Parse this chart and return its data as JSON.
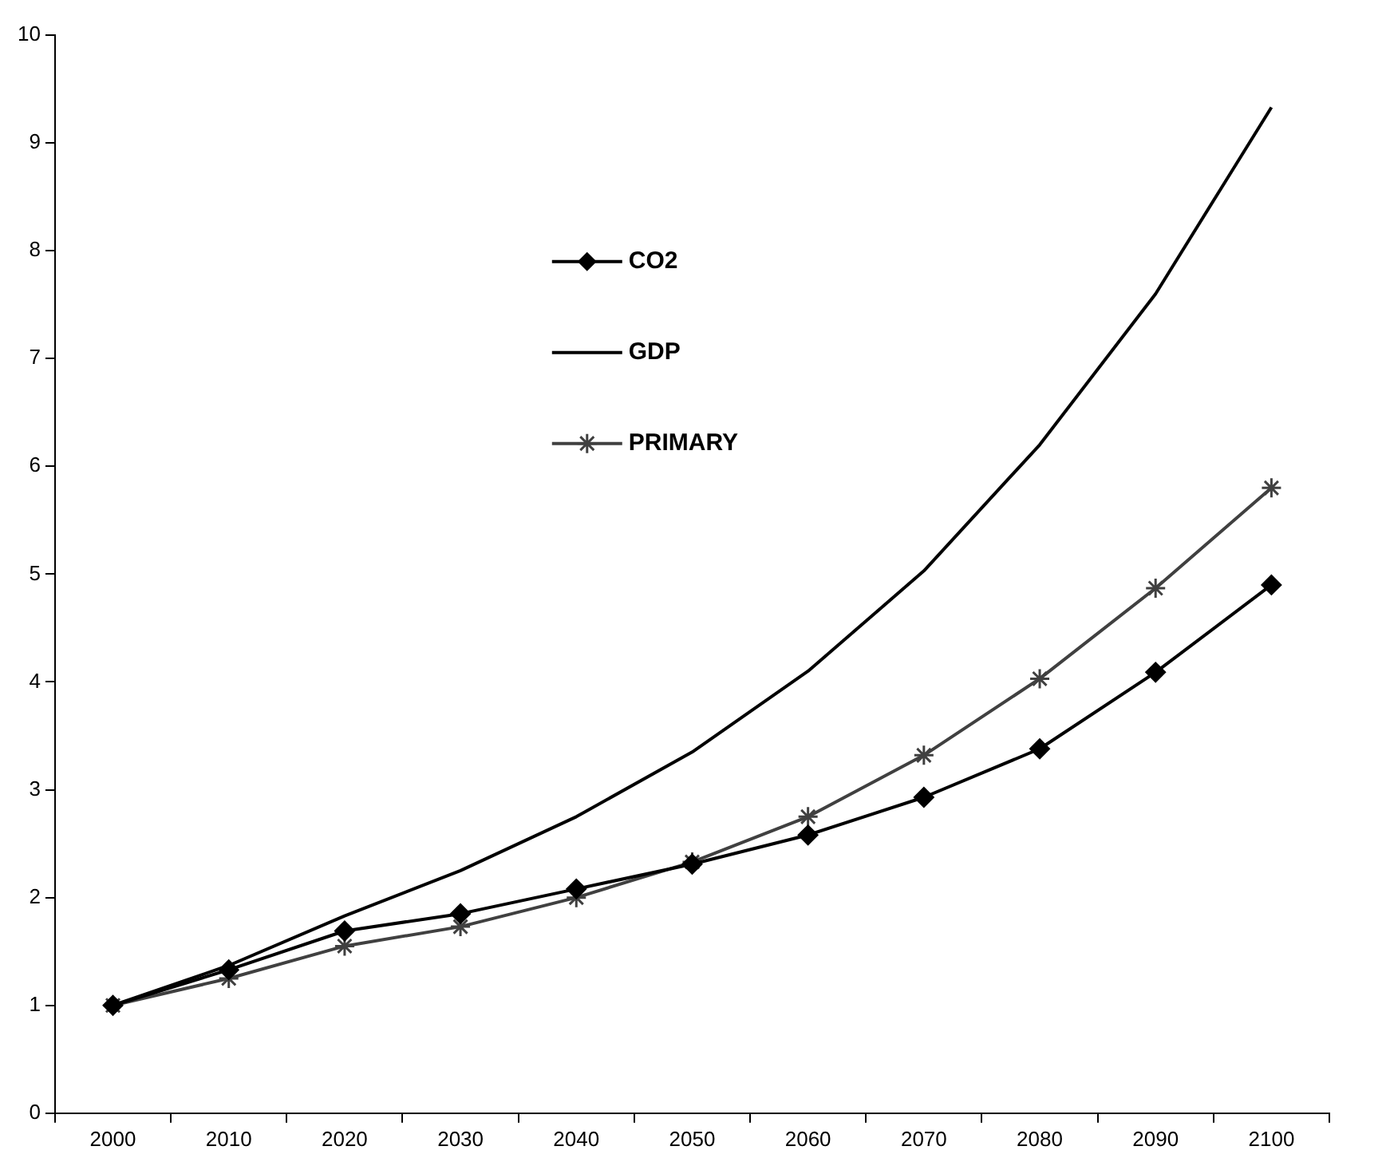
{
  "chart_data": {
    "type": "line",
    "categories": [
      "2000",
      "2010",
      "2020",
      "2030",
      "2040",
      "2050",
      "2060",
      "2070",
      "2080",
      "2090",
      "2100"
    ],
    "series": [
      {
        "name": "CO2",
        "color": "#000000",
        "marker": "diamond",
        "values": [
          1.0,
          1.33,
          1.69,
          1.85,
          2.08,
          2.31,
          2.58,
          2.93,
          3.38,
          4.09,
          4.9
        ]
      },
      {
        "name": "GDP",
        "color": "#000000",
        "marker": "none",
        "values": [
          1.0,
          1.37,
          1.83,
          2.25,
          2.75,
          3.35,
          4.1,
          5.03,
          6.2,
          7.6,
          9.33
        ]
      },
      {
        "name": "PRIMARY",
        "color": "#404040",
        "marker": "cross",
        "values": [
          1.0,
          1.25,
          1.55,
          1.73,
          2.0,
          2.33,
          2.75,
          3.32,
          4.03,
          4.87,
          5.8
        ]
      }
    ],
    "ylim": [
      0,
      10
    ],
    "yticks": [
      0,
      1,
      2,
      3,
      4,
      5,
      6,
      7,
      8,
      9,
      10
    ],
    "grid": false,
    "legend": "top",
    "line_style": "solid"
  }
}
